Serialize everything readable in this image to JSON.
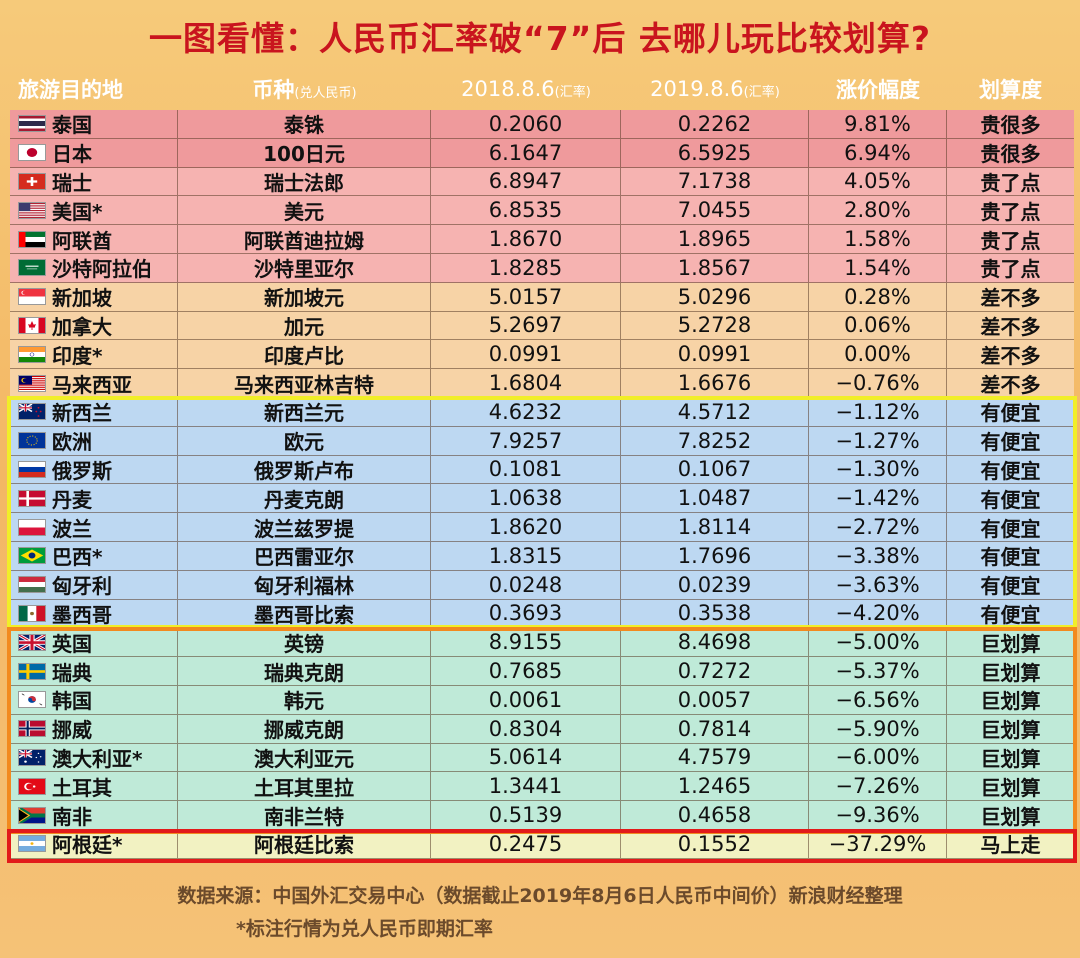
{
  "title": "一图看懂：人民币汇率破“7”后 去哪儿玩比较划算?",
  "header": {
    "destination": "旅游目的地",
    "currency": "币种",
    "currency_note": "(兑人民币)",
    "date1": "2018.8.6",
    "date1_note": "(汇率)",
    "date2": "2019.8.6",
    "date2_note": "(汇率)",
    "change": "涨价幅度",
    "value": "划算度"
  },
  "rows": [
    {
      "country": "泰国",
      "currency": "泰铢",
      "r2018": "0.2060",
      "r2019": "0.2262",
      "change": "9.81%",
      "rating": "贵很多",
      "group": "red",
      "flag": "thailand-flag-icon"
    },
    {
      "country": "日本",
      "currency": "100日元",
      "r2018": "6.1647",
      "r2019": "6.5925",
      "change": "6.94%",
      "rating": "贵很多",
      "group": "red",
      "flag": "japan-flag-icon"
    },
    {
      "country": "瑞士",
      "currency": "瑞士法郎",
      "r2018": "6.8947",
      "r2019": "7.1738",
      "change": "4.05%",
      "rating": "贵了点",
      "group": "pink",
      "flag": "switzerland-flag-icon"
    },
    {
      "country": "美国*",
      "currency": "美元",
      "r2018": "6.8535",
      "r2019": "7.0455",
      "change": "2.80%",
      "rating": "贵了点",
      "group": "pink",
      "flag": "usa-flag-icon"
    },
    {
      "country": "阿联酋",
      "currency": "阿联酋迪拉姆",
      "r2018": "1.8670",
      "r2019": "1.8965",
      "change": "1.58%",
      "rating": "贵了点",
      "group": "pink",
      "flag": "uae-flag-icon"
    },
    {
      "country": "沙特阿拉伯",
      "currency": "沙特里亚尔",
      "r2018": "1.8285",
      "r2019": "1.8567",
      "change": "1.54%",
      "rating": "贵了点",
      "group": "pink",
      "flag": "saudi-flag-icon"
    },
    {
      "country": "新加坡",
      "currency": "新加坡元",
      "r2018": "5.0157",
      "r2019": "5.0296",
      "change": "0.28%",
      "rating": "差不多",
      "group": "orange",
      "flag": "singapore-flag-icon"
    },
    {
      "country": "加拿大",
      "currency": "加元",
      "r2018": "5.2697",
      "r2019": "5.2728",
      "change": "0.06%",
      "rating": "差不多",
      "group": "orange",
      "flag": "canada-flag-icon"
    },
    {
      "country": "印度*",
      "currency": "印度卢比",
      "r2018": "0.0991",
      "r2019": "0.0991",
      "change": "0.00%",
      "rating": "差不多",
      "group": "orange",
      "flag": "india-flag-icon"
    },
    {
      "country": "马来西亚",
      "currency": "马来西亚林吉特",
      "r2018": "1.6804",
      "r2019": "1.6676",
      "change": "−0.76%",
      "rating": "差不多",
      "group": "orange",
      "flag": "malaysia-flag-icon"
    },
    {
      "country": "新西兰",
      "currency": "新西兰元",
      "r2018": "4.6232",
      "r2019": "4.5712",
      "change": "−1.12%",
      "rating": "有便宜",
      "group": "blue",
      "flag": "newzealand-flag-icon"
    },
    {
      "country": "欧洲",
      "currency": "欧元",
      "r2018": "7.9257",
      "r2019": "7.8252",
      "change": "−1.27%",
      "rating": "有便宜",
      "group": "blue",
      "flag": "eu-flag-icon"
    },
    {
      "country": "俄罗斯",
      "currency": "俄罗斯卢布",
      "r2018": "0.1081",
      "r2019": "0.1067",
      "change": "−1.30%",
      "rating": "有便宜",
      "group": "blue",
      "flag": "russia-flag-icon"
    },
    {
      "country": "丹麦",
      "currency": "丹麦克朗",
      "r2018": "1.0638",
      "r2019": "1.0487",
      "change": "−1.42%",
      "rating": "有便宜",
      "group": "blue",
      "flag": "denmark-flag-icon"
    },
    {
      "country": "波兰",
      "currency": "波兰兹罗提",
      "r2018": "1.8620",
      "r2019": "1.8114",
      "change": "−2.72%",
      "rating": "有便宜",
      "group": "blue",
      "flag": "poland-flag-icon"
    },
    {
      "country": "巴西*",
      "currency": "巴西雷亚尔",
      "r2018": "1.8315",
      "r2019": "1.7696",
      "change": "−3.38%",
      "rating": "有便宜",
      "group": "blue",
      "flag": "brazil-flag-icon"
    },
    {
      "country": "匈牙利",
      "currency": "匈牙利福林",
      "r2018": "0.0248",
      "r2019": "0.0239",
      "change": "−3.63%",
      "rating": "有便宜",
      "group": "blue",
      "flag": "hungary-flag-icon"
    },
    {
      "country": "墨西哥",
      "currency": "墨西哥比索",
      "r2018": "0.3693",
      "r2019": "0.3538",
      "change": "−4.20%",
      "rating": "有便宜",
      "group": "blue",
      "flag": "mexico-flag-icon"
    },
    {
      "country": "英国",
      "currency": "英镑",
      "r2018": "8.9155",
      "r2019": "8.4698",
      "change": "−5.00%",
      "rating": "巨划算",
      "group": "teal",
      "flag": "uk-flag-icon"
    },
    {
      "country": "瑞典",
      "currency": "瑞典克朗",
      "r2018": "0.7685",
      "r2019": "0.7272",
      "change": "−5.37%",
      "rating": "巨划算",
      "group": "teal",
      "flag": "sweden-flag-icon"
    },
    {
      "country": "韩国",
      "currency": "韩元",
      "r2018": "0.0061",
      "r2019": "0.0057",
      "change": "−6.56%",
      "rating": "巨划算",
      "group": "teal",
      "flag": "korea-flag-icon"
    },
    {
      "country": "挪威",
      "currency": "挪威克朗",
      "r2018": "0.8304",
      "r2019": "0.7814",
      "change": "−5.90%",
      "rating": "巨划算",
      "group": "teal",
      "flag": "norway-flag-icon"
    },
    {
      "country": "澳大利亚*",
      "currency": "澳大利亚元",
      "r2018": "5.0614",
      "r2019": "4.7579",
      "change": "−6.00%",
      "rating": "巨划算",
      "group": "teal",
      "flag": "australia-flag-icon"
    },
    {
      "country": "土耳其",
      "currency": "土耳其里拉",
      "r2018": "1.3441",
      "r2019": "1.2465",
      "change": "−7.26%",
      "rating": "巨划算",
      "group": "teal",
      "flag": "turkey-flag-icon"
    },
    {
      "country": "南非",
      "currency": "南非兰特",
      "r2018": "0.5139",
      "r2019": "0.4658",
      "change": "−9.36%",
      "rating": "巨划算",
      "group": "teal",
      "flag": "southafrica-flag-icon"
    },
    {
      "country": "阿根廷*",
      "currency": "阿根廷比索",
      "r2018": "0.2475",
      "r2019": "0.1552",
      "change": "−37.29%",
      "rating": "马上走",
      "group": "yellow",
      "flag": "argentina-flag-icon"
    }
  ],
  "footer": {
    "source": "数据来源：中国外汇交易中心（数据截止2019年8月6日人民币中间价）新浪财经整理",
    "note": "*标注行情为兑人民币即期汇率"
  }
}
